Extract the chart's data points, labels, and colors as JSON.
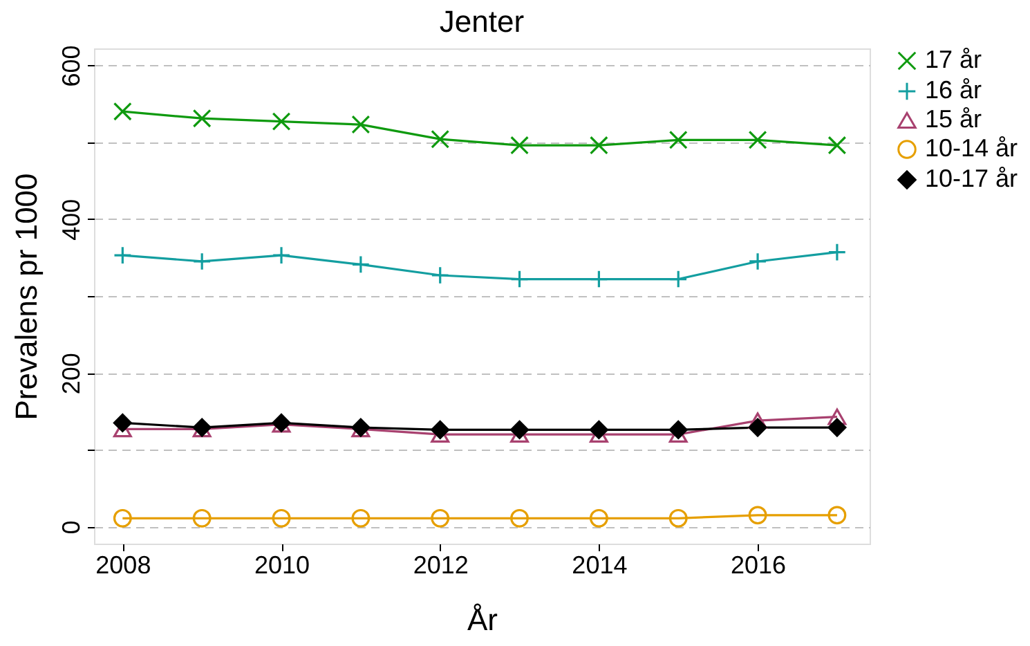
{
  "chart_data": {
    "type": "line",
    "title": "Jenter",
    "xlabel": "År",
    "ylabel": "Prevalens pr 1000",
    "x": [
      2008,
      2009,
      2010,
      2011,
      2012,
      2013,
      2014,
      2015,
      2016,
      2017
    ],
    "xlim": [
      2007.64,
      2017.41
    ],
    "xticks": [
      2008,
      2010,
      2012,
      2014,
      2016
    ],
    "ylim": [
      -22,
      622
    ],
    "yticks": [
      0,
      {
        "value": 100,
        "label": null
      },
      200,
      {
        "value": 300,
        "label": null
      },
      400,
      {
        "value": 500,
        "label": null
      },
      600
    ],
    "grid": "y",
    "legend": "right",
    "series": [
      {
        "name": "17 år",
        "color": "#0f9a0f",
        "marker": "cross",
        "values": [
          540,
          531,
          527,
          523,
          504,
          496,
          496,
          503,
          503,
          496
        ]
      },
      {
        "name": "16 år",
        "color": "#139ea0",
        "marker": "plus",
        "values": [
          353,
          345,
          353,
          341,
          327,
          322,
          322,
          322,
          345,
          357
        ]
      },
      {
        "name": "15 år",
        "color": "#a8416f",
        "marker": "triangle",
        "values": [
          127,
          127,
          133,
          127,
          120,
          120,
          120,
          120,
          138,
          143
        ]
      },
      {
        "name": "10-14 år",
        "color": "#e69f00",
        "marker": "circle",
        "values": [
          11,
          11,
          11,
          11,
          11,
          11,
          11,
          11,
          15,
          15
        ]
      },
      {
        "name": "10-17 år",
        "color": "#000000",
        "marker": "diamond",
        "values": [
          135,
          129,
          135,
          129,
          126,
          126,
          126,
          126,
          129,
          129
        ]
      }
    ]
  }
}
